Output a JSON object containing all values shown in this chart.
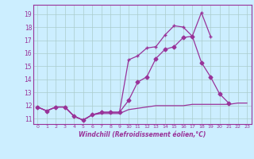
{
  "xlabel": "Windchill (Refroidissement éolien,°C)",
  "bg_color": "#cceeff",
  "grid_color": "#aacccc",
  "line_color": "#993399",
  "xlim": [
    -0.5,
    23.5
  ],
  "ylim": [
    10.6,
    19.7
  ],
  "yticks": [
    11,
    12,
    13,
    14,
    15,
    16,
    17,
    18,
    19
  ],
  "xticks": [
    0,
    1,
    2,
    3,
    4,
    5,
    6,
    7,
    8,
    9,
    10,
    11,
    12,
    13,
    14,
    15,
    16,
    17,
    18,
    19,
    20,
    21,
    22,
    23
  ],
  "series": [
    {
      "x": [
        0,
        1,
        2,
        3,
        4,
        5,
        6,
        7,
        8,
        9,
        10,
        11,
        12,
        13,
        14,
        15,
        16,
        17,
        18,
        19,
        20,
        21,
        22,
        23
      ],
      "y": [
        11.9,
        11.6,
        11.9,
        11.9,
        11.2,
        10.9,
        11.3,
        11.4,
        11.4,
        11.4,
        11.7,
        11.8,
        11.9,
        12.0,
        12.0,
        12.0,
        12.0,
        12.1,
        12.1,
        12.1,
        12.1,
        12.1,
        12.2,
        12.2
      ],
      "marker": null,
      "lw": 0.9
    },
    {
      "x": [
        0,
        1,
        2,
        3,
        4,
        5,
        6,
        7,
        8,
        9,
        10,
        11,
        12,
        13,
        14,
        15,
        16,
        17,
        18,
        19,
        20,
        21,
        22,
        23
      ],
      "y": [
        11.9,
        11.6,
        11.9,
        11.9,
        11.2,
        10.9,
        11.3,
        11.5,
        11.5,
        11.5,
        12.4,
        13.8,
        14.2,
        15.6,
        16.3,
        16.5,
        17.2,
        17.3,
        15.3,
        14.2,
        12.9,
        12.2,
        null,
        null
      ],
      "marker": "D",
      "lw": 0.9
    },
    {
      "x": [
        0,
        1,
        2,
        3,
        4,
        5,
        6,
        7,
        8,
        9,
        10,
        11,
        12,
        13,
        14,
        15,
        16,
        17,
        18,
        19,
        20,
        21,
        22,
        23
      ],
      "y": [
        11.9,
        11.6,
        11.9,
        11.9,
        11.2,
        10.9,
        11.3,
        11.5,
        11.5,
        11.5,
        15.5,
        15.8,
        16.4,
        16.5,
        17.4,
        18.1,
        18.0,
        17.3,
        19.1,
        17.3,
        null,
        null,
        null,
        null
      ],
      "marker": "+",
      "lw": 0.9
    }
  ]
}
